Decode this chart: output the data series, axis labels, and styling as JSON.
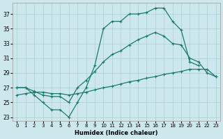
{
  "xlabel": "Humidex (Indice chaleur)",
  "bg_color": "#cce8ec",
  "grid_color": "#aacdd4",
  "line_color": "#1a7a6e",
  "xlim": [
    -0.5,
    23.5
  ],
  "ylim": [
    22.5,
    38.5
  ],
  "ytick_vals": [
    23,
    25,
    27,
    29,
    31,
    33,
    35,
    37
  ],
  "line1_x": [
    0,
    1,
    2,
    3,
    4,
    5,
    6,
    7,
    8,
    9,
    10,
    11,
    12,
    13,
    14,
    15,
    16,
    17,
    18,
    19,
    20,
    21
  ],
  "line1_y": [
    27,
    27,
    26,
    25,
    24,
    24,
    23,
    25,
    27,
    30,
    35,
    36,
    36,
    37,
    37,
    37.2,
    37.8,
    37.8,
    36,
    34.8,
    30.5,
    30
  ],
  "line2_x": [
    0,
    1,
    2,
    3,
    4,
    5,
    6,
    7,
    8,
    9,
    10,
    11,
    12,
    13,
    14,
    15,
    16,
    17,
    18,
    19,
    20,
    21,
    22,
    23
  ],
  "line2_y": [
    27,
    27,
    26.5,
    26,
    25.8,
    25.8,
    25,
    27,
    28,
    29.2,
    30.5,
    31.5,
    32,
    32.8,
    33.5,
    34,
    34.5,
    34,
    33,
    32.8,
    31,
    30.5,
    29,
    28.5
  ],
  "line3_x": [
    0,
    1,
    2,
    3,
    4,
    5,
    6,
    7,
    8,
    9,
    10,
    11,
    12,
    13,
    14,
    15,
    16,
    17,
    18,
    19,
    20,
    21,
    22,
    23
  ],
  "line3_y": [
    26,
    26.2,
    26.4,
    26.4,
    26.2,
    26.2,
    26,
    26.2,
    26.4,
    26.7,
    27,
    27.2,
    27.5,
    27.8,
    28,
    28.3,
    28.5,
    28.8,
    29,
    29.2,
    29.5,
    29.5,
    29.5,
    28.5
  ]
}
